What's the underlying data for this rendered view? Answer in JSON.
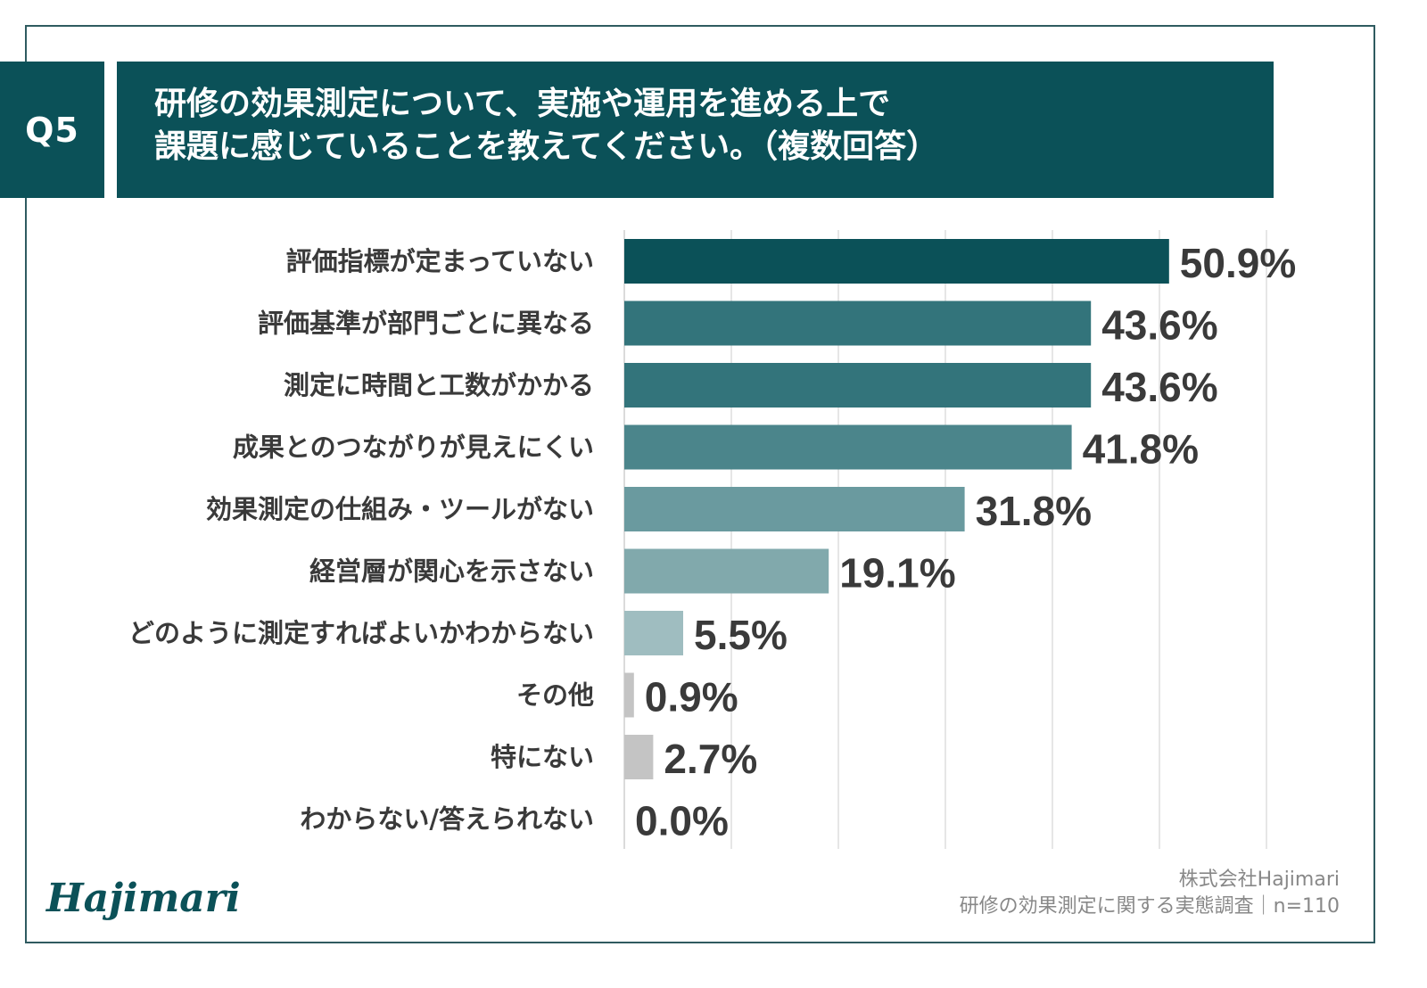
{
  "question": {
    "number": "Q5",
    "title_line1": "研修の効果測定について、実施や運用を進める上で",
    "title_line2": "課題に感じていることを教えてください。（複数回答）"
  },
  "chart_data": {
    "type": "bar",
    "orientation": "horizontal",
    "unit": "%",
    "xlim": [
      0,
      60
    ],
    "grid": true,
    "categories": [
      "評価指標が定まっていない",
      "評価基準が部門ごとに異なる",
      "測定に時間と工数がかかる",
      "成果とのつながりが見えにくい",
      "効果測定の仕組み・ツールがない",
      "経営層が関心を示さない",
      "どのように測定すればよいかわからない",
      "その他",
      "特にない",
      "わからない/答えられない"
    ],
    "values": [
      50.9,
      43.6,
      43.6,
      41.8,
      31.8,
      19.1,
      5.5,
      0.9,
      2.7,
      0.0
    ],
    "value_labels": [
      "50.9%",
      "43.6%",
      "43.6%",
      "41.8%",
      "31.8%",
      "19.1%",
      "5.5%",
      "0.9%",
      "2.7%",
      "0.0%"
    ],
    "bar_colors": [
      "#0b5158",
      "#33747b",
      "#33747b",
      "#4b858b",
      "#6a9a9f",
      "#81a9ac",
      "#9fbdc0",
      "#c4c4c4",
      "#c4c4c4",
      "#c4c4c4"
    ]
  },
  "footer": {
    "logo": "Hajimari",
    "company": "株式会社Hajimari",
    "survey": "研修の効果測定に関する実態調査｜n=110"
  }
}
